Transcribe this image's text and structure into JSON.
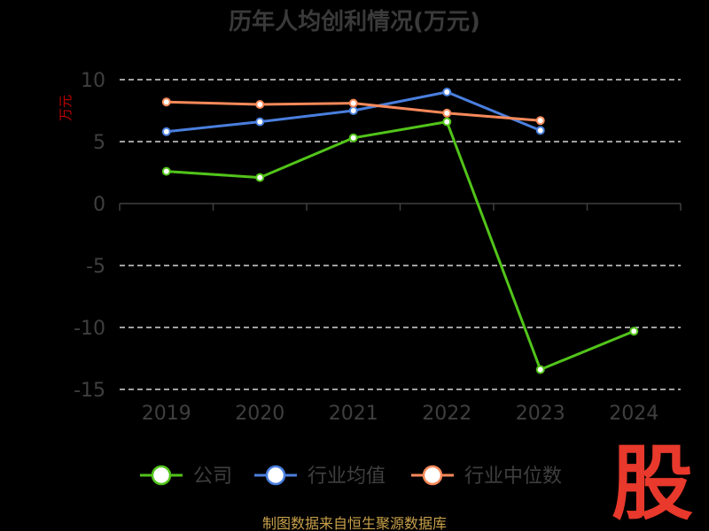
{
  "chart_data": {
    "type": "line",
    "title": "历年人均创利情况(万元)",
    "ylabel": "万元",
    "categories": [
      "2019",
      "2020",
      "2021",
      "2022",
      "2023",
      "2024"
    ],
    "ylim": [
      -15,
      10
    ],
    "yticks": [
      10,
      5,
      0,
      -5,
      -10,
      -15
    ],
    "grid": true,
    "legend_position": "bottom",
    "series": [
      {
        "name": "公司",
        "color": "#52c41a",
        "values": [
          2.6,
          2.1,
          5.3,
          6.6,
          -13.4,
          -10.3
        ]
      },
      {
        "name": "行业均值",
        "color": "#4a7fde",
        "values": [
          5.8,
          6.6,
          7.5,
          9.0,
          5.9,
          null
        ]
      },
      {
        "name": "行业中位数",
        "color": "#f7895a",
        "values": [
          8.2,
          8.0,
          8.1,
          7.3,
          6.7,
          null
        ]
      }
    ]
  },
  "source": "制图数据来自恒生聚源数据库",
  "logo_text": "股"
}
